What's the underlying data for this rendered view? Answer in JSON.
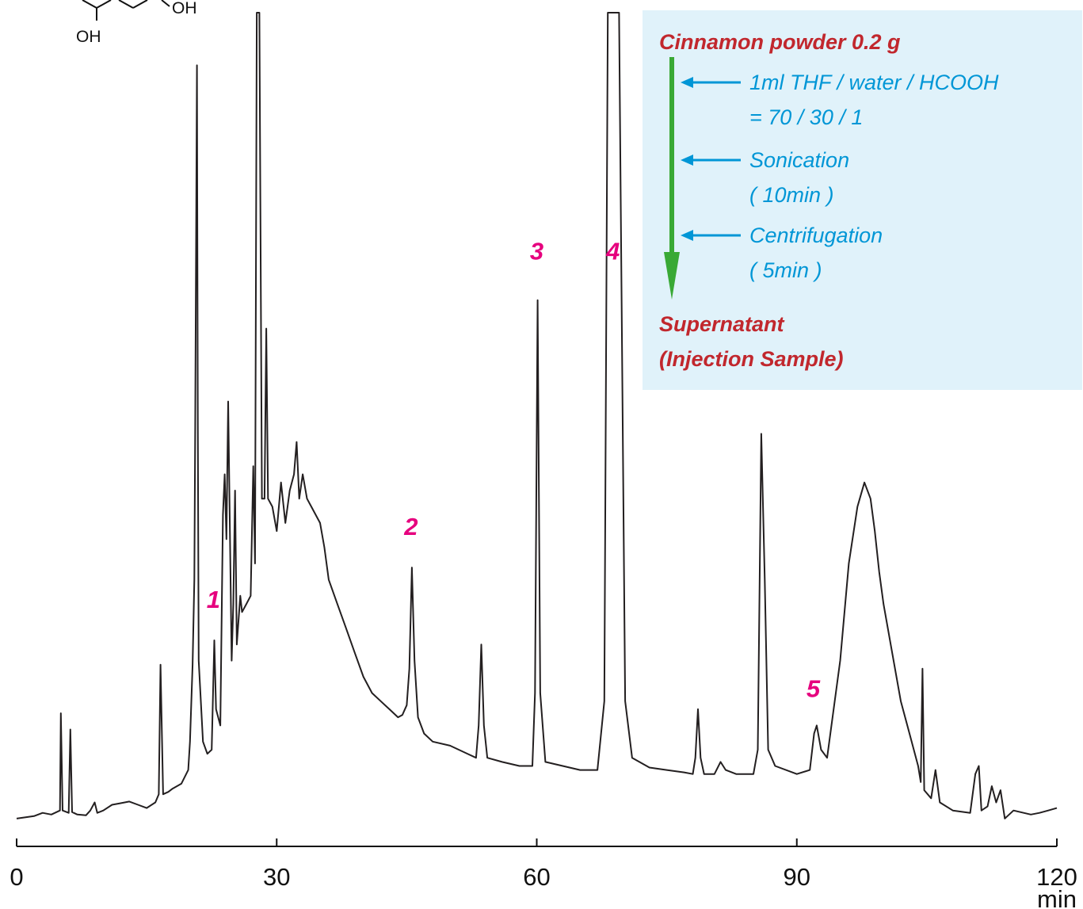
{
  "chart_data": {
    "type": "line",
    "title": "",
    "xlabel": "",
    "ylabel": "",
    "x_unit": "min",
    "xlim": [
      0,
      120
    ],
    "ylim": [
      0,
      100
    ],
    "x_ticks": [
      0,
      30,
      60,
      90,
      120
    ],
    "x_tick_labels": [
      "0",
      "30",
      "60",
      "90",
      "120"
    ],
    "grid": false,
    "series": [
      {
        "color": "#231f20",
        "points": [
          [
            0,
            0.5
          ],
          [
            2,
            0.8
          ],
          [
            3,
            1.2
          ],
          [
            4,
            1.0
          ],
          [
            5,
            1.5
          ],
          [
            5.1,
            13.5
          ],
          [
            5.3,
            1.5
          ],
          [
            6,
            1.2
          ],
          [
            6.2,
            11.5
          ],
          [
            6.4,
            1.3
          ],
          [
            7,
            1.0
          ],
          [
            8,
            0.9
          ],
          [
            8.5,
            1.5
          ],
          [
            9,
            2.5
          ],
          [
            9.3,
            1.2
          ],
          [
            10,
            1.5
          ],
          [
            11,
            2.2
          ],
          [
            12,
            2.4
          ],
          [
            13,
            2.6
          ],
          [
            14,
            2.2
          ],
          [
            15,
            1.8
          ],
          [
            16,
            2.5
          ],
          [
            16.4,
            3.5
          ],
          [
            16.6,
            19.5
          ],
          [
            16.9,
            3.5
          ],
          [
            17.5,
            3.8
          ],
          [
            18,
            4.2
          ],
          [
            19,
            4.8
          ],
          [
            19.8,
            6.5
          ],
          [
            20,
            10
          ],
          [
            20.3,
            19.5
          ],
          [
            20.5,
            30
          ],
          [
            20.6,
            49
          ],
          [
            20.8,
            93.5
          ],
          [
            20.9,
            49
          ],
          [
            21,
            20
          ],
          [
            21.5,
            10
          ],
          [
            22,
            8.5
          ],
          [
            22.5,
            9
          ],
          [
            22.8,
            22.5
          ],
          [
            23,
            14
          ],
          [
            23.5,
            12
          ],
          [
            23.8,
            38
          ],
          [
            24,
            43
          ],
          [
            24.2,
            35
          ],
          [
            24.4,
            52
          ],
          [
            24.6,
            36
          ],
          [
            24.8,
            20
          ],
          [
            25,
            27
          ],
          [
            25.2,
            41
          ],
          [
            25.4,
            22
          ],
          [
            25.8,
            28
          ],
          [
            26,
            26
          ],
          [
            26.5,
            27
          ],
          [
            27,
            28
          ],
          [
            27.3,
            44
          ],
          [
            27.5,
            32
          ],
          [
            27.7,
            100
          ],
          [
            28,
            100
          ],
          [
            28.3,
            40
          ],
          [
            28.6,
            40
          ],
          [
            28.8,
            61
          ],
          [
            29,
            40
          ],
          [
            29.5,
            39
          ],
          [
            30,
            36
          ],
          [
            30.5,
            42
          ],
          [
            31,
            37
          ],
          [
            31.5,
            41
          ],
          [
            32,
            43
          ],
          [
            32.3,
            47
          ],
          [
            32.6,
            40
          ],
          [
            33,
            43
          ],
          [
            33.5,
            40
          ],
          [
            34,
            39
          ],
          [
            34.5,
            38
          ],
          [
            35,
            37
          ],
          [
            35.5,
            34
          ],
          [
            36,
            30
          ],
          [
            37,
            27
          ],
          [
            38,
            24
          ],
          [
            39,
            21
          ],
          [
            40,
            18
          ],
          [
            41,
            16
          ],
          [
            42,
            15
          ],
          [
            43,
            14
          ],
          [
            44,
            13
          ],
          [
            44.5,
            13.3
          ],
          [
            45,
            14.5
          ],
          [
            45.3,
            19
          ],
          [
            45.6,
            31.5
          ],
          [
            45.9,
            20
          ],
          [
            46.3,
            13
          ],
          [
            47,
            11
          ],
          [
            48,
            10
          ],
          [
            50,
            9.5
          ],
          [
            52,
            8.5
          ],
          [
            53,
            8
          ],
          [
            53.3,
            12
          ],
          [
            53.6,
            22
          ],
          [
            53.9,
            12
          ],
          [
            54.3,
            8
          ],
          [
            56,
            7.5
          ],
          [
            58,
            7
          ],
          [
            59.5,
            7
          ],
          [
            59.8,
            16
          ],
          [
            60.1,
            64.5
          ],
          [
            60.4,
            16
          ],
          [
            61,
            7.5
          ],
          [
            63,
            7
          ],
          [
            65,
            6.5
          ],
          [
            67,
            6.5
          ],
          [
            67.8,
            15
          ],
          [
            68.2,
            100
          ],
          [
            69.5,
            100
          ],
          [
            70.2,
            15
          ],
          [
            71,
            8
          ],
          [
            73,
            6.8
          ],
          [
            75,
            6.5
          ],
          [
            77,
            6.2
          ],
          [
            78,
            6
          ],
          [
            78.3,
            8
          ],
          [
            78.6,
            14
          ],
          [
            78.9,
            8
          ],
          [
            79.3,
            6
          ],
          [
            80.5,
            6
          ],
          [
            81.2,
            7.5
          ],
          [
            81.8,
            6.5
          ],
          [
            83,
            6
          ],
          [
            85,
            6
          ],
          [
            85.5,
            9
          ],
          [
            85.9,
            48
          ],
          [
            86.3,
            30
          ],
          [
            86.7,
            9
          ],
          [
            87.5,
            7
          ],
          [
            90,
            6
          ],
          [
            91.5,
            6.5
          ],
          [
            92,
            11
          ],
          [
            92.3,
            12
          ],
          [
            92.8,
            9
          ],
          [
            93.5,
            8
          ],
          [
            95,
            20
          ],
          [
            96,
            32
          ],
          [
            97,
            39
          ],
          [
            97.8,
            42
          ],
          [
            98.5,
            40
          ],
          [
            99,
            36
          ],
          [
            99.5,
            31
          ],
          [
            100,
            27
          ],
          [
            101,
            21
          ],
          [
            102,
            15
          ],
          [
            103,
            11
          ],
          [
            104,
            7
          ],
          [
            104.3,
            5
          ],
          [
            104.5,
            19
          ],
          [
            104.7,
            4
          ],
          [
            105.5,
            3
          ],
          [
            106,
            6.5
          ],
          [
            106.5,
            2.5
          ],
          [
            108,
            1.5
          ],
          [
            110,
            1.2
          ],
          [
            110.6,
            6
          ],
          [
            111,
            7
          ],
          [
            111.3,
            1.5
          ],
          [
            112,
            2
          ],
          [
            112.5,
            4.5
          ],
          [
            113,
            2.5
          ],
          [
            113.5,
            4
          ],
          [
            114,
            0.5
          ],
          [
            115,
            1.5
          ],
          [
            117,
            1
          ],
          [
            118,
            1.2
          ],
          [
            119,
            1.5
          ],
          [
            120,
            1.8
          ]
        ]
      }
    ],
    "peak_labels": [
      {
        "label": "1",
        "x": 22.7,
        "y": 26.5
      },
      {
        "label": "2",
        "x": 45.5,
        "y": 35.5
      },
      {
        "label": "3",
        "x": 60.0,
        "y": 69.5
      },
      {
        "label": "4",
        "x": 68.8,
        "y": 69.5
      },
      {
        "label": "5",
        "x": 91.9,
        "y": 15.5
      }
    ],
    "annotations": {
      "molecule_labels": [
        "OH",
        "OH"
      ],
      "procedure": {
        "start": "Cinnamon powder 0.2 g",
        "steps": [
          {
            "lines": [
              "1ml THF / water / HCOOH",
              "= 70 / 30 / 1"
            ]
          },
          {
            "lines": [
              "Sonication",
              "( 10min )"
            ]
          },
          {
            "lines": [
              "Centrifugation",
              "( 5min )"
            ]
          }
        ],
        "end_lines": [
          "Supernatant",
          "(Injection Sample)"
        ]
      }
    }
  },
  "colors": {
    "trace": "#231f20",
    "peak_label": "#e6007e",
    "procedure_title": "#c1272d",
    "procedure_step": "#0096d6",
    "procedure_arrow": "#39a935",
    "procedure_box": "#e0f2fa"
  }
}
